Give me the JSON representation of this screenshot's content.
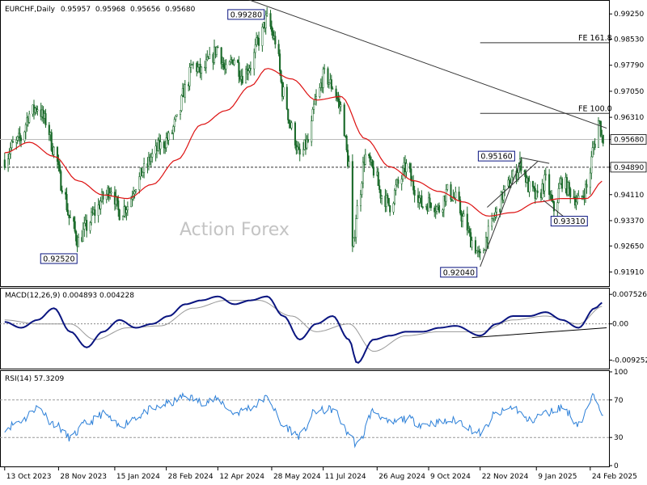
{
  "chart_data": [
    {
      "type": "candlestick",
      "panel": "price",
      "title": "EURCHF,Daily",
      "ohlc": {
        "open": "0.95957",
        "high": "0.95968",
        "low": "0.95656",
        "close": "0.95680"
      },
      "ylim": [
        0.9153,
        0.996
      ],
      "yticks": [
        "0.99250",
        "0.98530",
        "0.97790",
        "0.97050",
        "0.96310",
        "0.95680",
        "0.94890",
        "0.94110",
        "0.93370",
        "0.92650",
        "0.91910"
      ],
      "last_price": 0.9568,
      "support_level": 0.9489,
      "swing_labels": [
        {
          "text": "0.99280",
          "value": 0.9928,
          "date": "2024-05-23"
        },
        {
          "text": "0.92520",
          "value": 0.9252,
          "date": "2023-12-11"
        },
        {
          "text": "0.92040",
          "value": 0.9204,
          "date": "2024-11-22"
        },
        {
          "text": "0.95160",
          "value": 0.9516,
          "date": "2024-12-27"
        },
        {
          "text": "0.93310",
          "value": 0.9331,
          "date": "2025-01-27"
        }
      ],
      "fib_levels": [
        {
          "text": "FE 161.8",
          "value": 0.9843
        },
        {
          "text": "FE 100.0",
          "value": 0.9642
        }
      ],
      "trendlines": [
        {
          "from": [
            "2024-04-22",
            0.9985
          ],
          "to": [
            "2025-03-10",
            0.96
          ]
        },
        {
          "from": [
            "2024-11-22",
            0.9206
          ],
          "to": [
            "2024-12-27",
            0.951
          ]
        },
        {
          "from": [
            "2024-11-28",
            0.9375
          ],
          "to": [
            "2025-01-10",
            0.9505
          ]
        },
        {
          "from": [
            "2024-12-27",
            0.9516
          ],
          "to": [
            "2025-01-20",
            0.95
          ]
        },
        {
          "from": [
            "2025-01-15",
            0.9395
          ],
          "to": [
            "2025-02-10",
            0.9325
          ]
        }
      ],
      "moving_average": "red",
      "watermark": "Action Forex",
      "closes": [
        [
          "2023-10-13",
          0.951
        ],
        [
          "2023-10-20",
          0.955
        ],
        [
          "2023-10-27",
          0.957
        ],
        [
          "2023-11-03",
          0.964
        ],
        [
          "2023-11-10",
          0.966
        ],
        [
          "2023-11-17",
          0.962
        ],
        [
          "2023-11-24",
          0.954
        ],
        [
          "2023-12-01",
          0.944
        ],
        [
          "2023-12-08",
          0.934
        ],
        [
          "2023-12-15",
          0.928
        ],
        [
          "2023-12-22",
          0.932
        ],
        [
          "2023-12-29",
          0.936
        ],
        [
          "2024-01-05",
          0.94
        ],
        [
          "2024-01-12",
          0.943
        ],
        [
          "2024-01-19",
          0.936
        ],
        [
          "2024-01-26",
          0.938
        ],
        [
          "2024-02-02",
          0.944
        ],
        [
          "2024-02-09",
          0.948
        ],
        [
          "2024-02-16",
          0.952
        ],
        [
          "2024-02-23",
          0.955
        ],
        [
          "2024-03-01",
          0.957
        ],
        [
          "2024-03-08",
          0.962
        ],
        [
          "2024-03-15",
          0.971
        ],
        [
          "2024-03-22",
          0.978
        ],
        [
          "2024-03-29",
          0.976
        ],
        [
          "2024-04-05",
          0.979
        ],
        [
          "2024-04-12",
          0.983
        ],
        [
          "2024-04-19",
          0.976
        ],
        [
          "2024-04-26",
          0.98
        ],
        [
          "2024-05-03",
          0.975
        ],
        [
          "2024-05-10",
          0.978
        ],
        [
          "2024-05-17",
          0.985
        ],
        [
          "2024-05-24",
          0.991
        ],
        [
          "2024-05-31",
          0.985
        ],
        [
          "2024-06-07",
          0.97
        ],
        [
          "2024-06-14",
          0.96
        ],
        [
          "2024-06-21",
          0.952
        ],
        [
          "2024-06-28",
          0.956
        ],
        [
          "2024-07-05",
          0.968
        ],
        [
          "2024-07-12",
          0.975
        ],
        [
          "2024-07-19",
          0.972
        ],
        [
          "2024-07-26",
          0.966
        ],
        [
          "2024-08-02",
          0.95
        ],
        [
          "2024-08-05",
          0.925
        ],
        [
          "2024-08-09",
          0.937
        ],
        [
          "2024-08-16",
          0.952
        ],
        [
          "2024-08-23",
          0.948
        ],
        [
          "2024-08-30",
          0.941
        ],
        [
          "2024-09-06",
          0.938
        ],
        [
          "2024-09-13",
          0.944
        ],
        [
          "2024-09-20",
          0.949
        ],
        [
          "2024-09-27",
          0.943
        ],
        [
          "2024-10-04",
          0.938
        ],
        [
          "2024-10-11",
          0.939
        ],
        [
          "2024-10-18",
          0.937
        ],
        [
          "2024-10-25",
          0.942
        ],
        [
          "2024-11-01",
          0.94
        ],
        [
          "2024-11-08",
          0.934
        ],
        [
          "2024-11-15",
          0.928
        ],
        [
          "2024-11-22",
          0.923
        ],
        [
          "2024-11-29",
          0.93
        ],
        [
          "2024-12-06",
          0.936
        ],
        [
          "2024-12-13",
          0.942
        ],
        [
          "2024-12-20",
          0.946
        ],
        [
          "2024-12-27",
          0.95
        ],
        [
          "2025-01-03",
          0.943
        ],
        [
          "2025-01-10",
          0.94
        ],
        [
          "2025-01-17",
          0.945
        ],
        [
          "2025-01-24",
          0.937
        ],
        [
          "2025-01-31",
          0.945
        ],
        [
          "2025-02-07",
          0.942
        ],
        [
          "2025-02-14",
          0.939
        ],
        [
          "2025-02-21",
          0.943
        ],
        [
          "2025-02-28",
          0.956
        ],
        [
          "2025-03-03",
          0.962
        ],
        [
          "2025-03-07",
          0.957
        ]
      ],
      "ma_values": [
        [
          "2023-10-13",
          0.953
        ],
        [
          "2023-11-03",
          0.956
        ],
        [
          "2023-11-24",
          0.952
        ],
        [
          "2023-12-15",
          0.945
        ],
        [
          "2024-01-05",
          0.941
        ],
        [
          "2024-01-26",
          0.94
        ],
        [
          "2024-02-16",
          0.944
        ],
        [
          "2024-03-08",
          0.951
        ],
        [
          "2024-03-29",
          0.961
        ],
        [
          "2024-04-19",
          0.965
        ],
        [
          "2024-05-10",
          0.972
        ],
        [
          "2024-05-24",
          0.977
        ],
        [
          "2024-06-14",
          0.974
        ],
        [
          "2024-07-05",
          0.968
        ],
        [
          "2024-07-26",
          0.969
        ],
        [
          "2024-08-16",
          0.957
        ],
        [
          "2024-09-06",
          0.949
        ],
        [
          "2024-09-27",
          0.945
        ],
        [
          "2024-10-18",
          0.942
        ],
        [
          "2024-11-08",
          0.939
        ],
        [
          "2024-11-29",
          0.935
        ],
        [
          "2024-12-20",
          0.936
        ],
        [
          "2025-01-10",
          0.939
        ],
        [
          "2025-01-31",
          0.94
        ],
        [
          "2025-02-21",
          0.94
        ],
        [
          "2025-03-07",
          0.945
        ]
      ]
    },
    {
      "type": "line",
      "panel": "macd",
      "title": "MACD(12,26,9) 0.004893 0.004228",
      "ylim": [
        -0.0112,
        0.0088
      ],
      "yticks": [
        "0.007526",
        "0.00",
        "-0.009252"
      ],
      "macd": [
        [
          "2023-10-13",
          0.0005
        ],
        [
          "2023-10-27",
          -0.001
        ],
        [
          "2023-11-10",
          0.001
        ],
        [
          "2023-11-24",
          0.004
        ],
        [
          "2023-12-08",
          -0.002
        ],
        [
          "2023-12-22",
          -0.006
        ],
        [
          "2024-01-05",
          -0.002
        ],
        [
          "2024-01-19",
          0.001
        ],
        [
          "2024-02-02",
          -0.001
        ],
        [
          "2024-02-16",
          0.0
        ],
        [
          "2024-03-01",
          0.002
        ],
        [
          "2024-03-15",
          0.005
        ],
        [
          "2024-03-29",
          0.006
        ],
        [
          "2024-04-12",
          0.007
        ],
        [
          "2024-04-26",
          0.005
        ],
        [
          "2024-05-10",
          0.006
        ],
        [
          "2024-05-24",
          0.007
        ],
        [
          "2024-06-07",
          0.002
        ],
        [
          "2024-06-21",
          -0.004
        ],
        [
          "2024-07-05",
          0.0
        ],
        [
          "2024-07-19",
          0.002
        ],
        [
          "2024-08-02",
          -0.004
        ],
        [
          "2024-08-09",
          -0.01
        ],
        [
          "2024-08-23",
          -0.004
        ],
        [
          "2024-09-06",
          -0.003
        ],
        [
          "2024-09-20",
          -0.002
        ],
        [
          "2024-10-04",
          -0.002
        ],
        [
          "2024-10-18",
          -0.001
        ],
        [
          "2024-11-01",
          -0.0005
        ],
        [
          "2024-11-22",
          -0.003
        ],
        [
          "2024-12-06",
          0.0
        ],
        [
          "2024-12-20",
          0.002
        ],
        [
          "2025-01-03",
          0.002
        ],
        [
          "2025-01-17",
          0.003
        ],
        [
          "2025-01-31",
          0.001
        ],
        [
          "2025-02-14",
          -0.001
        ],
        [
          "2025-02-28",
          0.004
        ],
        [
          "2025-03-07",
          0.0055
        ]
      ],
      "signal": [
        [
          "2023-10-13",
          0.001
        ],
        [
          "2023-11-10",
          0.0
        ],
        [
          "2023-12-08",
          0.0
        ],
        [
          "2023-12-29",
          -0.004
        ],
        [
          "2024-01-26",
          -0.001
        ],
        [
          "2024-02-23",
          -0.0005
        ],
        [
          "2024-03-22",
          0.004
        ],
        [
          "2024-04-19",
          0.006
        ],
        [
          "2024-05-17",
          0.006
        ],
        [
          "2024-06-14",
          0.002
        ],
        [
          "2024-07-05",
          -0.002
        ],
        [
          "2024-08-02",
          0.0
        ],
        [
          "2024-08-23",
          -0.007
        ],
        [
          "2024-09-20",
          -0.003
        ],
        [
          "2024-10-18",
          -0.002
        ],
        [
          "2024-11-22",
          -0.002
        ],
        [
          "2024-12-20",
          0.001
        ],
        [
          "2025-01-17",
          0.002
        ],
        [
          "2025-02-14",
          0.0
        ],
        [
          "2025-03-07",
          0.0045
        ]
      ],
      "trendline": {
        "from": [
          "2024-11-15",
          -0.0035
        ],
        "to": [
          "2025-03-10",
          -0.001
        ]
      }
    },
    {
      "type": "line",
      "panel": "rsi",
      "title": "RSI(14) 57.3209",
      "ylim": [
        0,
        100
      ],
      "yticks": [
        "100",
        "70",
        "30",
        "0"
      ],
      "levels": [
        70,
        30
      ],
      "rsi": [
        [
          "2023-10-13",
          40
        ],
        [
          "2023-10-27",
          48
        ],
        [
          "2023-11-10",
          62
        ],
        [
          "2023-11-24",
          45
        ],
        [
          "2023-12-08",
          30
        ],
        [
          "2023-12-22",
          45
        ],
        [
          "2024-01-05",
          55
        ],
        [
          "2024-01-19",
          42
        ],
        [
          "2024-02-02",
          52
        ],
        [
          "2024-02-16",
          60
        ],
        [
          "2024-03-01",
          66
        ],
        [
          "2024-03-15",
          74
        ],
        [
          "2024-03-29",
          68
        ],
        [
          "2024-04-12",
          70
        ],
        [
          "2024-04-26",
          56
        ],
        [
          "2024-05-10",
          62
        ],
        [
          "2024-05-24",
          72
        ],
        [
          "2024-06-07",
          42
        ],
        [
          "2024-06-21",
          32
        ],
        [
          "2024-07-05",
          58
        ],
        [
          "2024-07-19",
          60
        ],
        [
          "2024-08-02",
          35
        ],
        [
          "2024-08-09",
          22
        ],
        [
          "2024-08-23",
          58
        ],
        [
          "2024-09-06",
          45
        ],
        [
          "2024-09-20",
          50
        ],
        [
          "2024-10-04",
          44
        ],
        [
          "2024-10-18",
          46
        ],
        [
          "2024-11-01",
          48
        ],
        [
          "2024-11-22",
          35
        ],
        [
          "2024-12-06",
          55
        ],
        [
          "2024-12-20",
          62
        ],
        [
          "2025-01-03",
          48
        ],
        [
          "2025-01-17",
          56
        ],
        [
          "2025-01-31",
          62
        ],
        [
          "2025-02-14",
          45
        ],
        [
          "2025-02-28",
          74
        ],
        [
          "2025-03-07",
          57.3
        ]
      ]
    }
  ],
  "x_axis": {
    "labels": [
      {
        "text": "13 Oct 2023",
        "date": "2023-10-13"
      },
      {
        "text": "28 Nov 2023",
        "date": "2023-11-28"
      },
      {
        "text": "15 Jan 2024",
        "date": "2024-01-15"
      },
      {
        "text": "28 Feb 2024",
        "date": "2024-02-28"
      },
      {
        "text": "12 Apr 2024",
        "date": "2024-04-12"
      },
      {
        "text": "28 May 2024",
        "date": "2024-05-28"
      },
      {
        "text": "11 Jul 2024",
        "date": "2024-07-11"
      },
      {
        "text": "26 Aug 2024",
        "date": "2024-08-26"
      },
      {
        "text": "9 Oct 2024",
        "date": "2024-10-09"
      },
      {
        "text": "22 Nov 2024",
        "date": "2024-11-22"
      },
      {
        "text": "9 Jan 2025",
        "date": "2025-01-09"
      },
      {
        "text": "24 Feb 2025",
        "date": "2025-02-24"
      }
    ],
    "range": [
      "2023-10-09",
      "2025-03-12"
    ]
  },
  "colors": {
    "price_bars": "#1a6a2a",
    "moving_average": "#dd1111",
    "macd_main": "#0a1580",
    "macd_signal": "#999999",
    "rsi": "#2b7fd8",
    "label_border": "#0a1580"
  }
}
